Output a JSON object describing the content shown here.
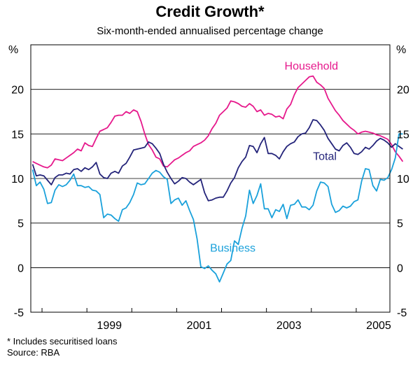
{
  "chart_data": {
    "type": "line",
    "title": "Credit Growth*",
    "subtitle": "Six-month-ended annualised percentage change",
    "ylabel_left": "%",
    "ylabel_right": "%",
    "ylim": [
      -5,
      25
    ],
    "yticks": [
      -5,
      0,
      5,
      10,
      15,
      20
    ],
    "xlim": [
      1997.75,
      2005.75
    ],
    "xticks": [
      {
        "value": 1999.0,
        "label": "1999"
      },
      {
        "value": 2001.0,
        "label": "2001"
      },
      {
        "value": 2003.0,
        "label": "2003"
      },
      {
        "value": 2005.0,
        "label": "2005"
      }
    ],
    "x_start": 1997.79,
    "x_step": 0.0833,
    "series": [
      {
        "name": "Household",
        "color": "#e6198c",
        "label_at": [
          2004.0,
          22.2
        ],
        "values": [
          11.9,
          11.7,
          11.5,
          11.3,
          11.2,
          11.5,
          12.2,
          12.1,
          12.0,
          12.3,
          12.6,
          12.9,
          13.3,
          13.1,
          14.0,
          13.7,
          13.6,
          14.5,
          15.3,
          15.5,
          15.7,
          16.3,
          17.0,
          17.1,
          17.1,
          17.5,
          17.3,
          17.7,
          17.5,
          16.4,
          15.0,
          13.8,
          13.2,
          12.4,
          12.2,
          11.4,
          11.3,
          11.7,
          12.1,
          12.3,
          12.6,
          12.9,
          13.1,
          13.6,
          13.8,
          14.0,
          14.3,
          14.8,
          15.6,
          16.2,
          17.1,
          17.5,
          17.9,
          18.7,
          18.6,
          18.4,
          18.1,
          18.0,
          18.4,
          18.1,
          17.5,
          17.7,
          17.1,
          17.3,
          17.2,
          16.9,
          17.0,
          16.7,
          17.8,
          18.3,
          19.4,
          20.2,
          20.6,
          21.0,
          21.4,
          21.5,
          20.8,
          20.5,
          20.1,
          19.0,
          18.3,
          17.6,
          17.1,
          16.5,
          16.1,
          15.7,
          15.4,
          15.0,
          15.2,
          15.3,
          15.2,
          15.1,
          14.9,
          14.8,
          14.6,
          14.4,
          13.8,
          13.0,
          12.5,
          11.9
        ]
      },
      {
        "name": "Total",
        "color": "#24247a",
        "label_at": [
          2004.3,
          12.1
        ],
        "values": [
          11.6,
          10.3,
          10.4,
          10.3,
          9.8,
          9.3,
          10.1,
          10.4,
          10.4,
          10.6,
          10.5,
          11.0,
          11.1,
          10.8,
          11.2,
          11.0,
          11.3,
          11.8,
          10.5,
          10.1,
          10.0,
          10.6,
          10.8,
          10.6,
          11.4,
          11.7,
          12.4,
          13.2,
          13.3,
          13.4,
          13.5,
          14.1,
          13.9,
          13.4,
          12.8,
          11.6,
          10.7,
          10.0,
          9.4,
          9.7,
          10.1,
          10.0,
          9.6,
          9.3,
          9.6,
          9.9,
          8.4,
          7.5,
          7.6,
          7.8,
          7.9,
          7.9,
          8.6,
          9.5,
          10.1,
          11.2,
          11.9,
          12.4,
          13.7,
          13.6,
          12.9,
          13.9,
          14.6,
          12.8,
          12.8,
          12.6,
          12.2,
          13.0,
          13.6,
          13.9,
          14.1,
          14.7,
          15.0,
          15.1,
          15.7,
          16.6,
          16.5,
          16.0,
          15.4,
          14.5,
          13.9,
          13.3,
          13.1,
          13.7,
          14.0,
          13.5,
          12.8,
          12.7,
          13.0,
          13.5,
          13.3,
          13.7,
          14.2,
          14.5,
          14.3,
          14.0,
          13.5,
          13.9,
          13.6,
          13.3
        ]
      },
      {
        "name": "Business",
        "color": "#1aa1db",
        "label_at": [
          2002.25,
          1.8
        ],
        "values": [
          11.0,
          9.2,
          9.6,
          8.8,
          7.2,
          7.3,
          8.7,
          9.3,
          9.1,
          9.3,
          9.8,
          10.5,
          9.2,
          9.2,
          9.0,
          9.1,
          8.7,
          8.6,
          8.2,
          5.6,
          6.0,
          5.9,
          5.5,
          5.2,
          6.5,
          6.7,
          7.3,
          8.2,
          9.5,
          9.3,
          9.4,
          10.0,
          10.6,
          10.9,
          10.7,
          10.2,
          9.9,
          7.2,
          7.6,
          7.8,
          7.0,
          7.5,
          6.4,
          5.4,
          3.2,
          0.1,
          -0.1,
          0.2,
          -0.3,
          -0.7,
          -1.6,
          -0.6,
          0.4,
          0.8,
          3.0,
          2.6,
          4.4,
          5.8,
          8.7,
          7.2,
          8.1,
          9.4,
          6.6,
          6.6,
          5.6,
          6.5,
          6.3,
          7.1,
          5.5,
          7.0,
          7.1,
          7.6,
          6.8,
          6.8,
          6.5,
          7.0,
          8.6,
          9.6,
          9.5,
          9.1,
          7.1,
          6.2,
          6.4,
          6.9,
          6.7,
          6.9,
          7.4,
          7.6,
          9.7,
          11.1,
          11.0,
          9.2,
          8.6,
          9.9,
          9.8,
          10.1,
          11.0,
          12.3,
          15.0,
          15.0
        ]
      }
    ],
    "notes": [
      "* Includes securitised loans",
      "Source: RBA"
    ]
  }
}
